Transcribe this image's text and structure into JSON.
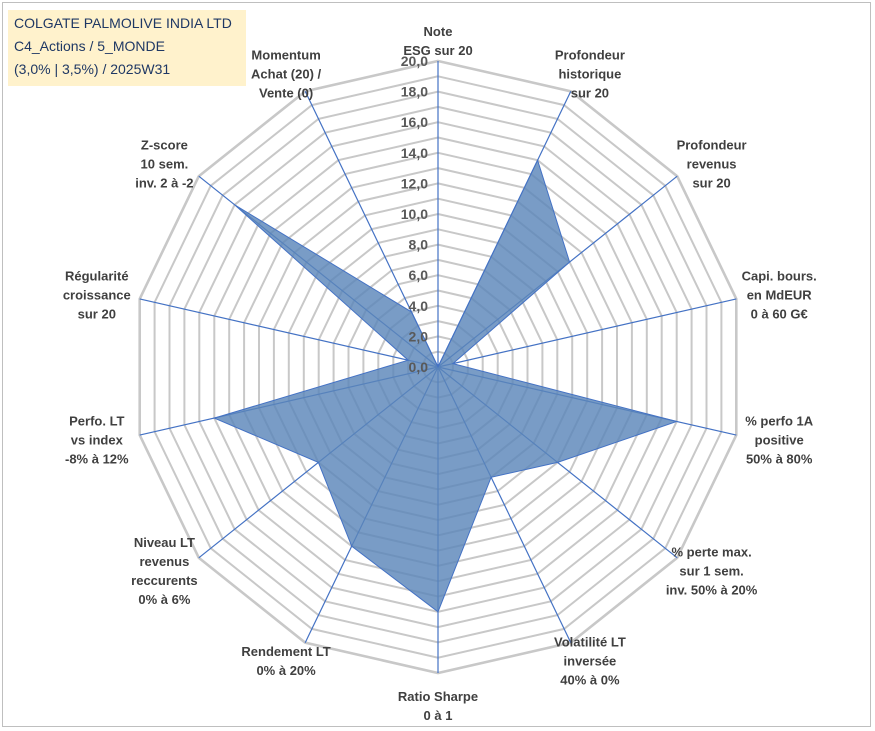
{
  "title_box": {
    "line1": "COLGATE PALMOLIVE INDIA LTD",
    "line2": "C4_Actions / 5_MONDE",
    "line3": "(3,0% | 3,5%) / 2025W31"
  },
  "colors": {
    "fill": "#5b86b9",
    "stroke": "#4472c4",
    "grid": "#c8c8c8",
    "spoke": "#4472c4",
    "title_bg": "#fff2cc",
    "title_text": "#1f3864"
  },
  "chart_data": {
    "type": "radar",
    "rmin": 0,
    "rmax": 20,
    "tick_step": 1,
    "tick_labels": [
      "0,0",
      "2,0",
      "4,0",
      "6,0",
      "8,0",
      "10,0",
      "12,0",
      "14,0",
      "16,0",
      "18,0",
      "20,0"
    ],
    "axes": [
      {
        "lines": [
          "Note",
          "ESG sur 20"
        ],
        "value": 0
      },
      {
        "lines": [
          "Profondeur",
          "historique",
          "sur 20"
        ],
        "value": 15
      },
      {
        "lines": [
          "Profondeur",
          "revenus",
          "sur 20"
        ],
        "value": 11
      },
      {
        "lines": [
          "Capi. bours.",
          "en MdEUR",
          "0 à 60 G€"
        ],
        "value": 1
      },
      {
        "lines": [
          "% perfo 1A",
          "positive",
          "50% à 80%"
        ],
        "value": 16
      },
      {
        "lines": [
          "% perte max.",
          "sur 1 sem.",
          "inv. 50% à 20%"
        ],
        "value": 10
      },
      {
        "lines": [
          "Volatilité LT",
          "inversée",
          "40% à 0%"
        ],
        "value": 8
      },
      {
        "lines": [
          "Ratio Sharpe",
          "0 à 1"
        ],
        "value": 16
      },
      {
        "lines": [
          "Rendement LT",
          "0% à 20%"
        ],
        "value": 13
      },
      {
        "lines": [
          "Niveau LT",
          "revenus",
          "reccurents",
          "0% à 6%"
        ],
        "value": 10
      },
      {
        "lines": [
          "Perfo. LT",
          "vs index",
          "-8% à 12%"
        ],
        "value": 15
      },
      {
        "lines": [
          "Régularité",
          "croissance",
          "sur 20"
        ],
        "value": 2
      },
      {
        "lines": [
          "Z-score",
          "10 sem.",
          "inv. 2 à -2"
        ],
        "value": 17
      },
      {
        "lines": [
          "Momentum",
          "Achat (20) /",
          "Vente (0)"
        ],
        "value": 4
      }
    ]
  }
}
